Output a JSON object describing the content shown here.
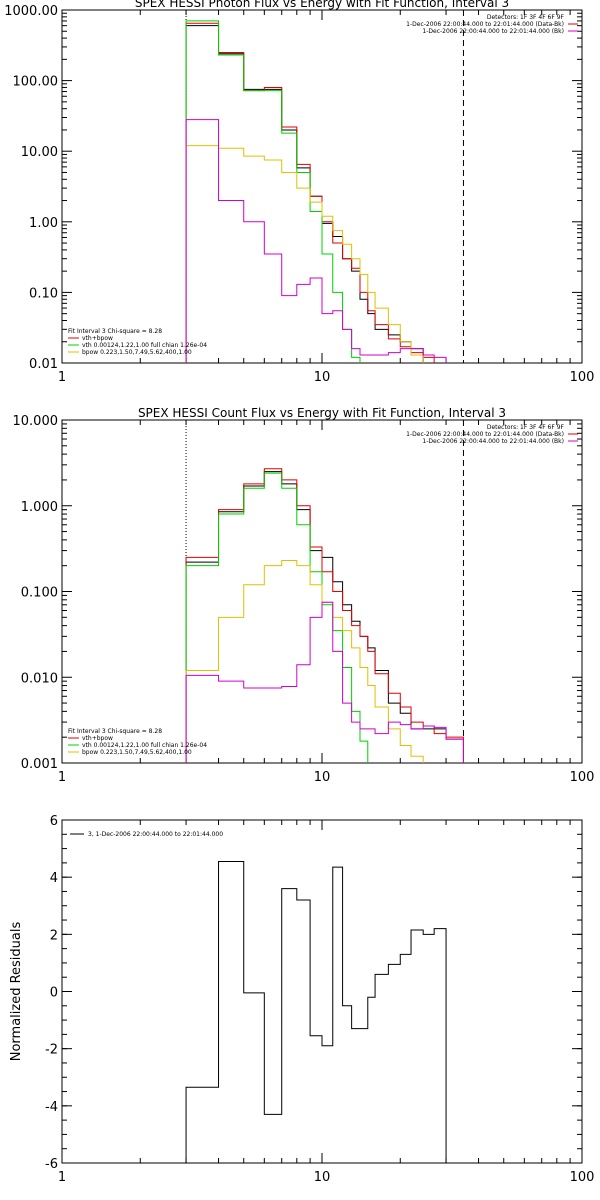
{
  "colors": {
    "data": "#000000",
    "total": "#e00000",
    "vth": "#00d000",
    "bpow": "#e0c000",
    "bk": "#d000d0"
  },
  "chart_data": [
    {
      "type": "line",
      "title": "SPEX HESSI Photon Flux vs Energy with Fit Function, Interval 3",
      "xscale": "log",
      "yscale": "log",
      "xlim": [
        1,
        100
      ],
      "ylim": [
        0.01,
        1000
      ],
      "xticks": [
        1,
        10,
        100
      ],
      "xticklabels": [
        "1",
        "10",
        "100"
      ],
      "yticks": [
        0.01,
        0.1,
        1,
        10,
        100,
        1000
      ],
      "yticklabels": [
        "0.01",
        "0.10",
        "1.00",
        "10.00",
        "100.00",
        "1000.00"
      ],
      "vlines": [
        {
          "x": 3,
          "style": "dotted"
        },
        {
          "x": 35,
          "style": "dashed"
        }
      ],
      "edges": [
        3.0,
        4.0,
        5.0,
        6.0,
        7.0,
        8.0,
        9.0,
        10.0,
        11.0,
        12.0,
        13.0,
        14.0,
        15.0,
        16.0,
        18.0,
        20.0,
        22.0,
        24.5,
        27.0,
        30.0,
        35.0
      ],
      "info_right": [
        "Detectors: 1F 3F 4F 6F 9F",
        "1-Dec-2006 22:00:44.000 to 22:01:44.000 (Data-Bk)",
        "1-Dec-2006 22:00:44.000 to 22:01:44.000 (Bk)"
      ],
      "info_left": [
        "Fit Interval 3   Chi-square = 8.28",
        "vth+bpow",
        "vth 0.00124,1.22,1.00  full chian 1.26e-04",
        "bpow 0.223,1.50,7.49,5.62,400,1.00"
      ],
      "series": [
        {
          "name": "Data-Bk",
          "color_key": "data",
          "values": [
            600,
            240,
            75,
            75,
            20,
            5.8,
            2.3,
            0.95,
            0.62,
            0.3,
            0.2,
            0.08,
            0.05,
            0.03,
            0.025,
            0.02,
            0.016
          ]
        },
        {
          "name": "vth+bpow",
          "color_key": "total",
          "values": [
            650,
            250,
            72,
            80,
            22,
            6.5,
            2.3,
            1.0,
            0.5,
            0.3,
            0.22,
            0.1,
            0.055,
            0.035,
            0.022,
            0.017,
            0.014,
            0.012
          ]
        },
        {
          "name": "vth",
          "color_key": "vth",
          "values": [
            700,
            230,
            72,
            72,
            18,
            5.0,
            1.4,
            0.35,
            0.1,
            0.03,
            0.012,
            0.005
          ]
        },
        {
          "name": "bpow",
          "color_key": "bpow",
          "values": [
            12,
            11,
            8.5,
            7.5,
            5.0,
            3.0,
            1.9,
            1.2,
            0.75,
            0.48,
            0.3,
            0.18,
            0.1,
            0.06,
            0.035,
            0.02,
            0.013,
            0.008
          ]
        },
        {
          "name": "Bk",
          "color_key": "bk",
          "values": [
            28,
            2.0,
            1.0,
            0.35,
            0.09,
            0.13,
            0.16,
            0.05,
            0.055,
            0.03,
            0.016,
            0.013,
            0.013,
            0.013,
            0.014,
            0.016,
            0.016,
            0.013,
            0.012
          ]
        }
      ]
    },
    {
      "type": "line",
      "title": "SPEX HESSI Count Flux vs Energy with Fit Function, Interval 3",
      "xscale": "log",
      "yscale": "log",
      "xlim": [
        1,
        100
      ],
      "ylim": [
        0.001,
        10
      ],
      "xticks": [
        1,
        10,
        100
      ],
      "xticklabels": [
        "1",
        "10",
        "100"
      ],
      "yticks": [
        0.001,
        0.01,
        0.1,
        1,
        10
      ],
      "yticklabels": [
        "0.001",
        "0.010",
        "0.100",
        "1.000",
        "10.000"
      ],
      "vlines": [
        {
          "x": 3,
          "style": "dotted"
        },
        {
          "x": 35,
          "style": "dashed"
        }
      ],
      "edges": [
        3.0,
        4.0,
        5.0,
        6.0,
        7.0,
        8.0,
        9.0,
        10.0,
        11.0,
        12.0,
        13.0,
        14.0,
        15.0,
        16.0,
        18.0,
        20.0,
        22.0,
        24.5,
        27.0,
        30.0,
        35.0
      ],
      "info_right": [
        "Detectors: 1F 3F 4F 6F 9F",
        "1-Dec-2006 22:00:44.000 to 22:01:44.000 (Data-Bk)",
        "1-Dec-2006 22:00:44.000 to 22:01:44.000 (Bk)"
      ],
      "info_left": [
        "Fit Interval 3   Chi-square = 8.28",
        "vth+bpow",
        "vth 0.00124,1.22,1.00  full chian 1.26e-04",
        "bpow 0.223,1.50,7.49,5.62,400,1.00"
      ],
      "series": [
        {
          "name": "Data-Bk",
          "color_key": "data",
          "values": [
            0.22,
            0.85,
            1.7,
            2.5,
            1.8,
            0.9,
            0.3,
            0.25,
            0.13,
            0.07,
            0.045,
            0.03,
            0.022,
            0.012,
            0.005,
            0.0038,
            0.0025,
            0.0025,
            0.0025,
            0.0019
          ]
        },
        {
          "name": "vth+bpow",
          "color_key": "total",
          "values": [
            0.25,
            0.9,
            1.8,
            2.7,
            2.0,
            1.0,
            0.33,
            0.17,
            0.1,
            0.06,
            0.04,
            0.03,
            0.02,
            0.011,
            0.0065,
            0.0045,
            0.003,
            0.0027,
            0.0022,
            0.002
          ]
        },
        {
          "name": "vth",
          "color_key": "vth",
          "values": [
            0.2,
            0.8,
            1.6,
            2.4,
            1.6,
            0.6,
            0.17,
            0.07,
            0.035,
            0.013,
            0.004,
            0.0018,
            0.0009
          ]
        },
        {
          "name": "bpow",
          "color_key": "bpow",
          "values": [
            0.012,
            0.05,
            0.12,
            0.2,
            0.23,
            0.2,
            0.12,
            0.075,
            0.05,
            0.035,
            0.022,
            0.013,
            0.008,
            0.0045,
            0.0025,
            0.0016,
            0.0012,
            0.0009
          ]
        },
        {
          "name": "Bk",
          "color_key": "bk",
          "values": [
            0.0105,
            0.009,
            0.0075,
            0.0075,
            0.0078,
            0.014,
            0.05,
            0.075,
            0.02,
            0.005,
            0.003,
            0.0025,
            0.0025,
            0.0022,
            0.003,
            0.0028,
            0.0025,
            0.0027,
            0.0026,
            0.0019
          ]
        }
      ]
    },
    {
      "type": "line",
      "title": "",
      "ylabel": "Normalized Residuals",
      "xscale": "log",
      "yscale": "linear",
      "xlim": [
        1,
        100
      ],
      "ylim": [
        -6,
        6
      ],
      "xticks": [
        1,
        10,
        100
      ],
      "xticklabels": [
        "1",
        "10",
        "100"
      ],
      "yticks": [
        -6,
        -4,
        -2,
        0,
        2,
        4,
        6
      ],
      "yticklabels": [
        "-6",
        "-4",
        "-2",
        "0",
        "2",
        "4",
        "6"
      ],
      "legend": "3, 1-Dec-2006 22:00:44.000 to 22:01:44.000",
      "edges": [
        3.0,
        4.0,
        5.0,
        6.0,
        7.0,
        8.0,
        9.0,
        10.0,
        11.0,
        12.0,
        13.0,
        14.0,
        15.0,
        16.0,
        18.0,
        20.0,
        22.0,
        24.5,
        27.0,
        30.0,
        35.0
      ],
      "series": [
        {
          "name": "3",
          "color_key": "data",
          "values": [
            -3.35,
            4.55,
            -0.05,
            -4.3,
            3.6,
            3.2,
            -1.55,
            -1.9,
            4.35,
            -0.5,
            -1.3,
            -1.3,
            -0.2,
            0.6,
            0.95,
            1.3,
            2.15,
            2.0,
            2.2
          ]
        }
      ]
    }
  ]
}
